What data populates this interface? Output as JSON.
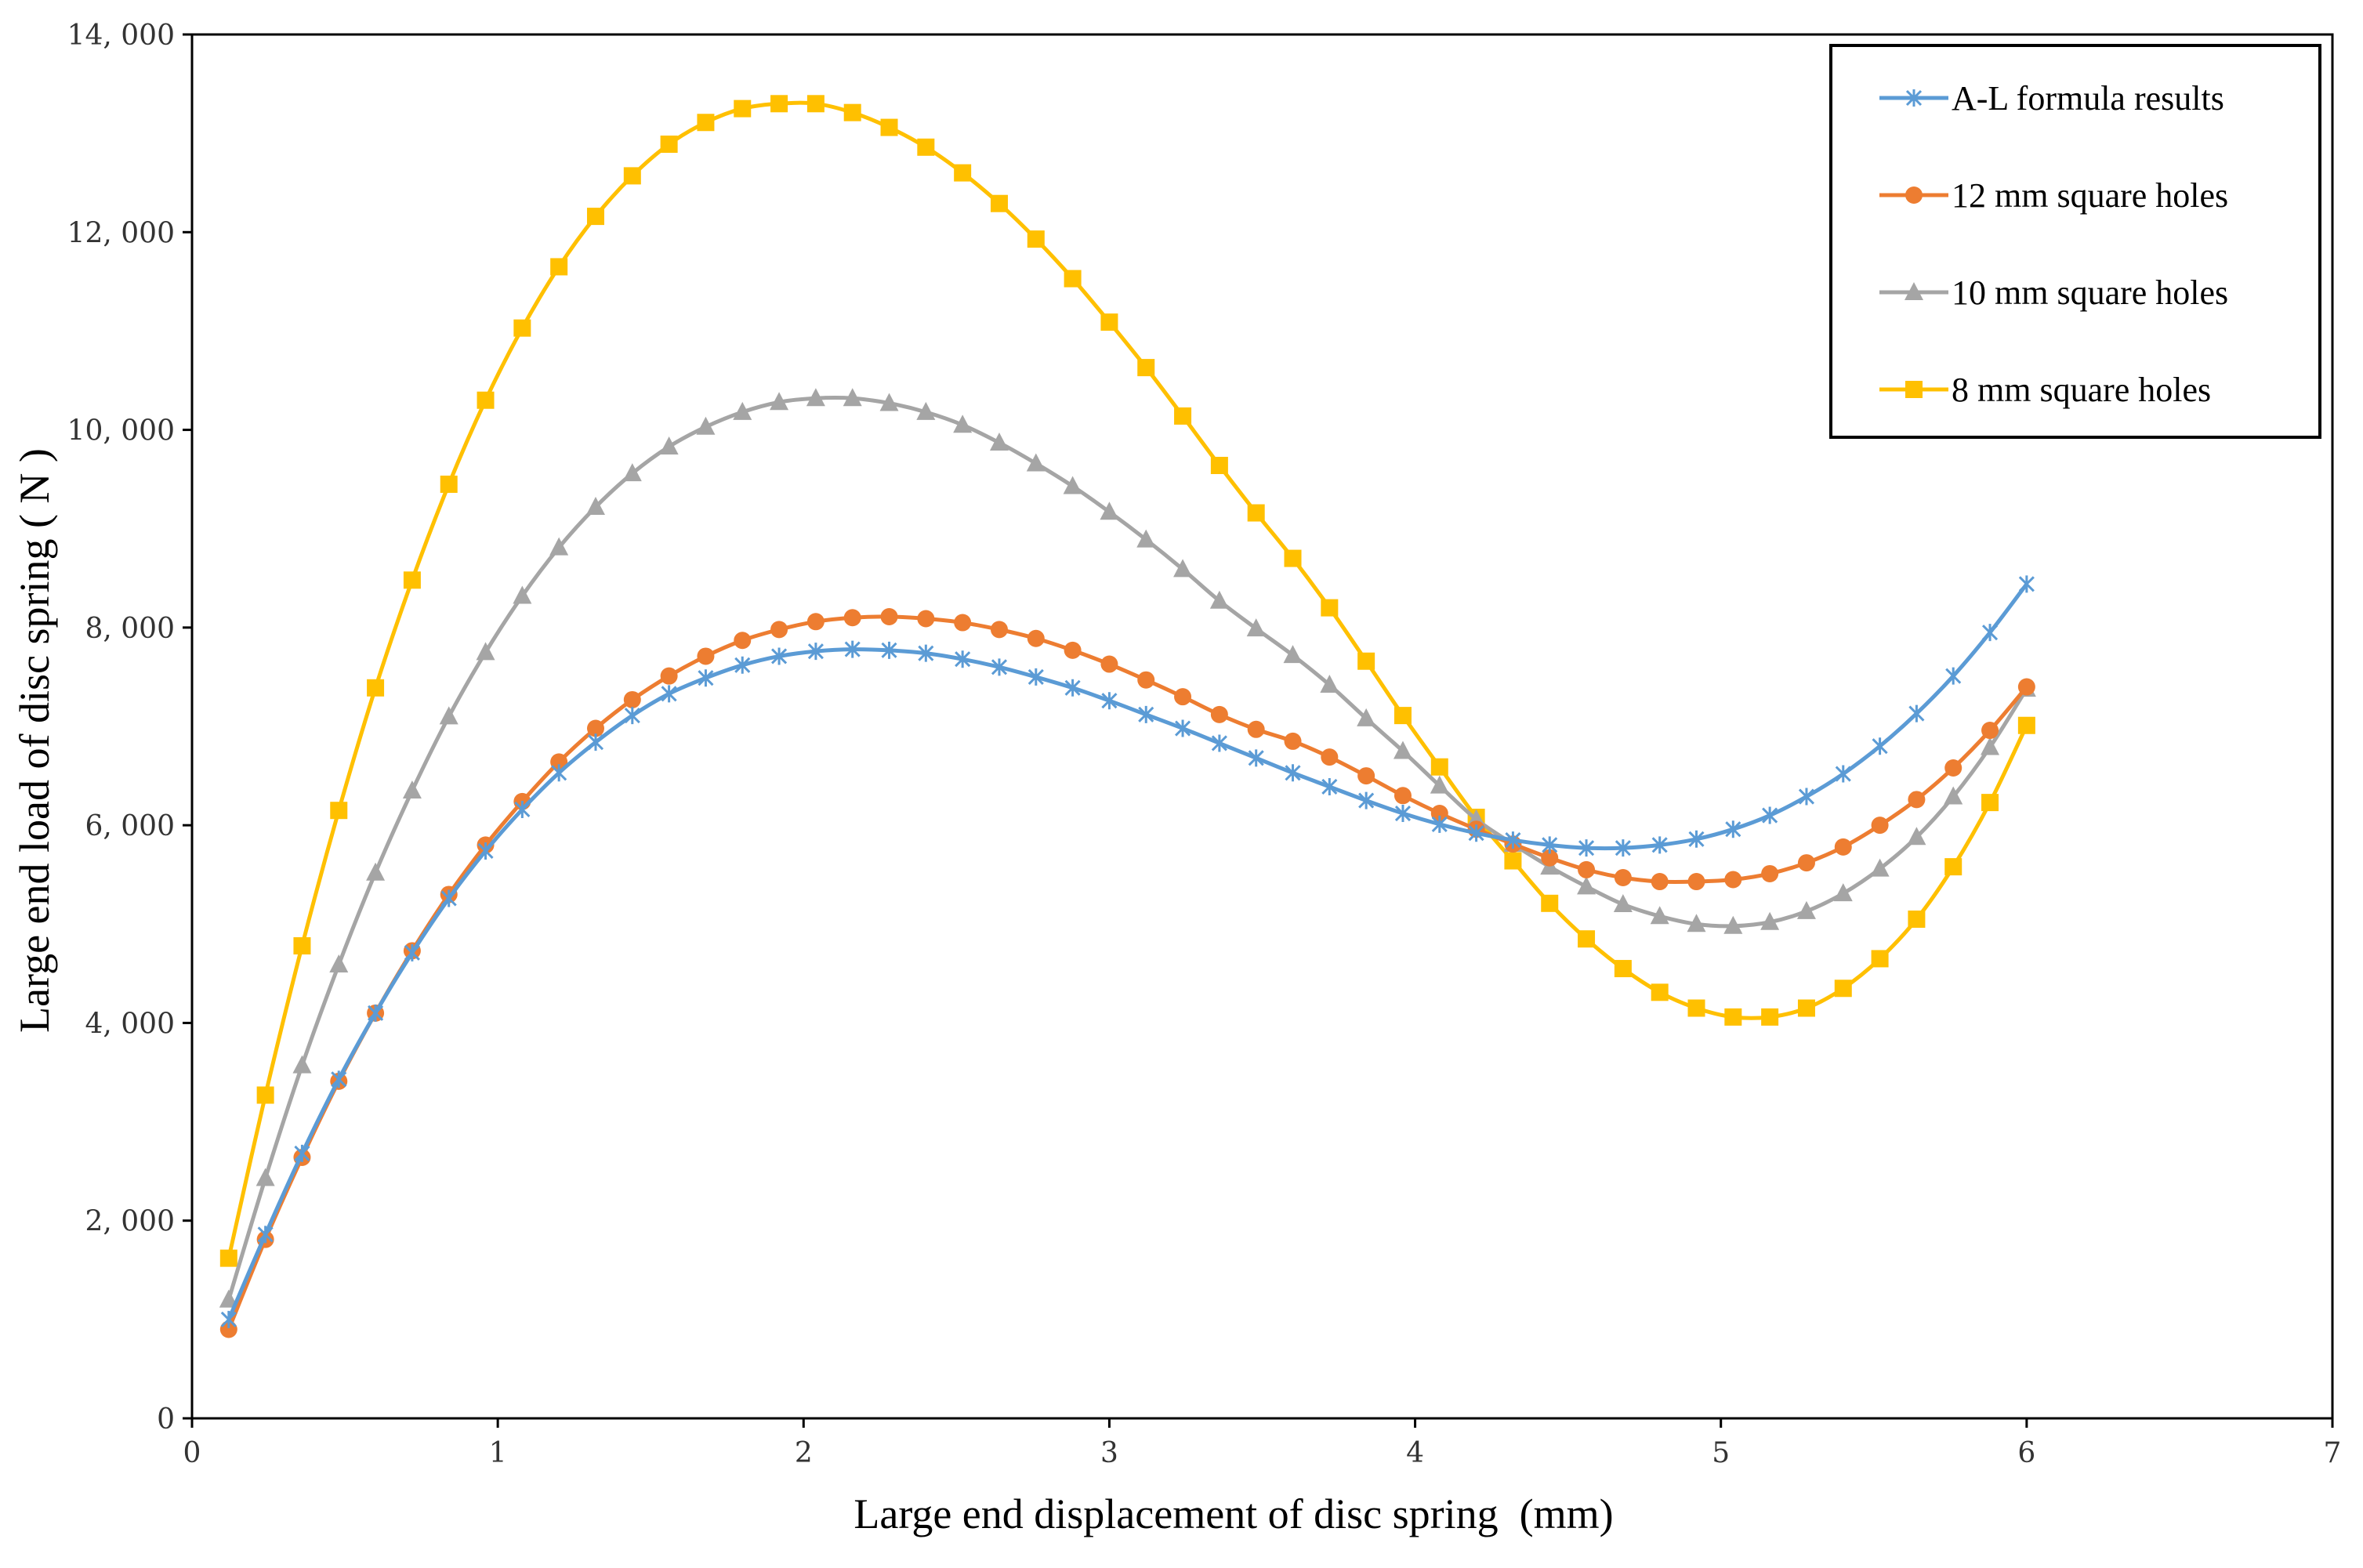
{
  "chart_data": {
    "type": "line",
    "title": "",
    "xlabel": "Large end displacement of disc spring  (mm)",
    "ylabel": "Large end load of disc spring ( N )",
    "xlim": [
      0,
      7
    ],
    "ylim": [
      0,
      14000
    ],
    "x_ticks": [
      0,
      1,
      2,
      3,
      4,
      5,
      6,
      7
    ],
    "x_tick_labels": [
      "0",
      "1",
      "2",
      "3",
      "4",
      "5",
      "6",
      "7"
    ],
    "y_ticks": [
      0,
      2000,
      4000,
      6000,
      8000,
      10000,
      12000,
      14000
    ],
    "y_tick_labels": [
      "0",
      "2, 000",
      "4, 000",
      "6, 000",
      "8, 000",
      "10, 000",
      "12, 000",
      "14, 000"
    ],
    "grid": false,
    "legend_position": "top-right",
    "x": [
      0.12,
      0.24,
      0.36,
      0.48,
      0.6,
      0.72,
      0.84,
      0.96,
      1.08,
      1.2,
      1.32,
      1.44,
      1.56,
      1.68,
      1.8,
      1.92,
      2.04,
      2.16,
      2.28,
      2.4,
      2.52,
      2.64,
      2.76,
      2.88,
      3.0,
      3.12,
      3.24,
      3.36,
      3.48,
      3.6,
      3.72,
      3.84,
      3.96,
      4.08,
      4.2,
      4.32,
      4.44,
      4.56,
      4.68,
      4.8,
      4.92,
      5.04,
      5.16,
      5.28,
      5.4,
      5.52,
      5.64,
      5.76,
      5.88,
      6.0
    ],
    "series": [
      {
        "name": "A-L formula results",
        "color": "#5b9bd5",
        "marker": "asterisk",
        "values": [
          1000,
          1860,
          2680,
          3430,
          4100,
          4710,
          5260,
          5740,
          6160,
          6530,
          6840,
          7110,
          7330,
          7490,
          7620,
          7710,
          7760,
          7780,
          7770,
          7740,
          7680,
          7600,
          7500,
          7390,
          7260,
          7120,
          6980,
          6830,
          6680,
          6530,
          6390,
          6250,
          6120,
          6010,
          5920,
          5850,
          5800,
          5770,
          5770,
          5800,
          5860,
          5960,
          6100,
          6290,
          6520,
          6800,
          7130,
          7510,
          7950,
          8440
        ]
      },
      {
        "name": "12 mm square holes",
        "color": "#ed7d31",
        "marker": "circle",
        "values": [
          900,
          1810,
          2640,
          3410,
          4100,
          4730,
          5300,
          5800,
          6240,
          6640,
          6980,
          7270,
          7510,
          7710,
          7870,
          7980,
          8060,
          8100,
          8110,
          8090,
          8050,
          7980,
          7890,
          7770,
          7630,
          7470,
          7300,
          7120,
          6970,
          6850,
          6690,
          6500,
          6300,
          6120,
          5960,
          5810,
          5670,
          5550,
          5470,
          5430,
          5430,
          5450,
          5510,
          5620,
          5780,
          6000,
          6260,
          6580,
          6960,
          7400
        ]
      },
      {
        "name": "10 mm square holes",
        "color": "#a5a5a5",
        "marker": "triangle",
        "values": [
          1200,
          2430,
          3570,
          4590,
          5520,
          6350,
          7100,
          7750,
          8320,
          8810,
          9220,
          9560,
          9830,
          10030,
          10180,
          10280,
          10320,
          10320,
          10270,
          10180,
          10050,
          9870,
          9660,
          9430,
          9170,
          8890,
          8590,
          8270,
          7990,
          7720,
          7420,
          7080,
          6750,
          6400,
          6060,
          5810,
          5580,
          5380,
          5200,
          5080,
          5000,
          4980,
          5020,
          5130,
          5310,
          5560,
          5880,
          6290,
          6790,
          7380
        ]
      },
      {
        "name": "8 mm square holes",
        "color": "#ffc000",
        "marker": "square",
        "values": [
          1620,
          3270,
          4780,
          6150,
          7390,
          8480,
          9450,
          10300,
          11030,
          11650,
          12160,
          12570,
          12890,
          13110,
          13250,
          13300,
          13300,
          13210,
          13060,
          12860,
          12600,
          12290,
          11930,
          11530,
          11090,
          10630,
          10140,
          9640,
          9160,
          8700,
          8200,
          7660,
          7110,
          6590,
          6080,
          5640,
          5210,
          4850,
          4550,
          4310,
          4150,
          4060,
          4060,
          4150,
          4350,
          4650,
          5050,
          5580,
          6230,
          7010
        ]
      }
    ]
  }
}
